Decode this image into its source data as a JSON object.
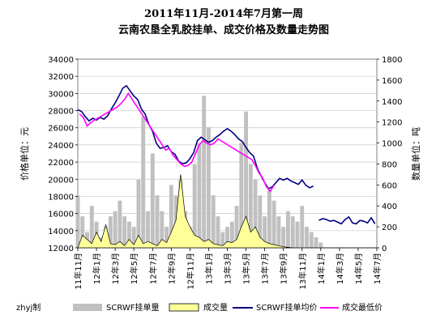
{
  "chart_data": {
    "type": "bar",
    "title": "2011年11月-2014年7月第一周",
    "subtitle": "云南农垦全乳胶挂单、成交价格及数量走势图",
    "ylabel_left": "价格单位：元",
    "ylabel_right": "数量单位：吨",
    "left_ticks": [
      "34000",
      "32000",
      "30000",
      "28000",
      "26000",
      "24000",
      "22000",
      "20000",
      "18000",
      "16000",
      "14000",
      "12000"
    ],
    "right_ticks": [
      "1800",
      "1600",
      "1400",
      "1200",
      "1000",
      "800",
      "600",
      "400",
      "200",
      "0"
    ],
    "x_ticks": [
      "11年11月",
      "12年1月",
      "12年3月",
      "12年5月",
      "12年7月",
      "12年9月",
      "12年11月",
      "13年1月",
      "13年3月",
      "13年5月",
      "13年7月",
      "13年9月",
      "13年11月",
      "14年1月",
      "14年3月",
      "14年5月",
      "14年7月"
    ],
    "ylim_left": [
      12000,
      34000
    ],
    "ylim_right": [
      0,
      1800
    ],
    "grid": true,
    "legend_position": "bottom",
    "author": "zhyj制",
    "colors": {
      "listing_qty": "#c0c0c0",
      "deal_qty": "#ffff99",
      "listing_avg": "#000080",
      "deal_low": "#ff00ff"
    },
    "series": [
      {
        "name": "SCRWF挂单量",
        "kind": "bar",
        "axis": "right",
        "x": [
          0,
          0.5,
          1,
          1.5,
          2,
          2.5,
          3,
          3.5,
          4,
          4.5,
          5,
          5.5,
          6,
          6.5,
          7,
          7.5,
          8,
          8.5,
          9,
          9.5,
          10,
          10.5,
          11,
          11.5,
          12,
          12.5,
          13,
          13.5,
          14,
          14.5,
          15,
          15.5,
          16,
          16.5,
          17,
          17.5,
          18,
          18.5,
          19,
          19.5,
          20,
          20.5,
          21,
          21.5,
          22,
          22.5,
          23,
          23.5,
          24,
          24.5,
          25,
          25.5,
          26,
          26.5,
          27,
          27.5,
          28,
          28.5,
          29,
          29.5,
          30,
          30.5,
          31,
          31.5,
          32
        ],
        "values": [
          500,
          300,
          150,
          400,
          250,
          100,
          200,
          300,
          350,
          450,
          300,
          250,
          200,
          650,
          1250,
          350,
          900,
          500,
          350,
          200,
          600,
          500,
          650,
          350,
          200,
          800,
          1000,
          1450,
          1150,
          500,
          300,
          150,
          200,
          250,
          400,
          1000,
          1300,
          800,
          650,
          500,
          300,
          550,
          450,
          300,
          200,
          350,
          300,
          250,
          400,
          200,
          150,
          100,
          50,
          0,
          0,
          0,
          0,
          0,
          0,
          0,
          0,
          0,
          0,
          0,
          0
        ]
      },
      {
        "name": "成交量",
        "kind": "area",
        "axis": "right",
        "x": [
          0,
          0.5,
          1,
          1.5,
          2,
          2.5,
          3,
          3.5,
          4,
          4.5,
          5,
          5.5,
          6,
          6.5,
          7,
          7.5,
          8,
          8.5,
          9,
          9.5,
          10,
          10.5,
          11,
          11.5,
          12,
          12.5,
          13,
          13.5,
          14,
          14.5,
          15,
          15.5,
          16,
          16.5,
          17,
          17.5,
          18,
          18.5,
          19,
          19.5,
          20,
          20.5,
          21,
          21.5,
          22,
          22.5,
          23,
          23.5,
          24,
          24.5,
          25,
          25.5,
          26,
          26.5,
          27,
          27.5,
          28,
          28.5,
          29,
          29.5,
          30,
          30.5,
          31,
          31.5,
          32
        ],
        "values": [
          0,
          120,
          80,
          40,
          150,
          60,
          220,
          40,
          30,
          60,
          20,
          80,
          30,
          120,
          40,
          60,
          40,
          20,
          80,
          50,
          150,
          260,
          700,
          300,
          200,
          120,
          100,
          60,
          80,
          40,
          30,
          20,
          60,
          50,
          80,
          200,
          300,
          150,
          200,
          100,
          60,
          40,
          30,
          20,
          10,
          5,
          0,
          0,
          0,
          0,
          0,
          0,
          0,
          0,
          0,
          0,
          0,
          0,
          0,
          0,
          0,
          0,
          0,
          0,
          0
        ]
      },
      {
        "name": "SCRWF挂单均价",
        "kind": "line",
        "axis": "left",
        "x": [
          0,
          0.4,
          0.8,
          1.2,
          1.6,
          2,
          2.4,
          2.8,
          3.2,
          3.6,
          4,
          4.4,
          4.8,
          5.2,
          5.6,
          6,
          6.4,
          6.8,
          7.2,
          7.6,
          8,
          8.4,
          8.8,
          9.2,
          9.6,
          10,
          10.4,
          10.8,
          11.2,
          11.6,
          12,
          12.4,
          12.8,
          13.2,
          13.6,
          14,
          14.4,
          14.8,
          15.2,
          15.6,
          16,
          16.4,
          16.8,
          17.2,
          17.6,
          18,
          18.4,
          18.8,
          19.2,
          19.6,
          20,
          20.4,
          20.8,
          21.2,
          21.6,
          22,
          22.4,
          22.8,
          23.2,
          23.6,
          24,
          24.4,
          24.8,
          25.2
        ],
        "values": [
          28100,
          27900,
          27300,
          26800,
          27100,
          26900,
          27200,
          27000,
          27400,
          28200,
          28900,
          29700,
          30600,
          30900,
          30300,
          29700,
          29300,
          28200,
          27600,
          26400,
          25600,
          24200,
          23600,
          23700,
          23900,
          23200,
          22900,
          22100,
          21800,
          21900,
          22400,
          23100,
          24500,
          24900,
          24600,
          24300,
          24500,
          24900,
          25200,
          25600,
          25900,
          25600,
          25200,
          24700,
          24400,
          23700,
          23100,
          22700,
          21300,
          20400,
          19600,
          18900,
          19100,
          19600,
          20100,
          19900,
          20100,
          19800,
          19600,
          19400,
          19900,
          19300,
          19000,
          19200
        ]
      },
      {
        "name": "成交最低价",
        "kind": "line",
        "axis": "left",
        "x": [
          0.2,
          0.6,
          1.0,
          1.4,
          1.8,
          4.2,
          4.6,
          5.0,
          5.4,
          9.4,
          9.8,
          10.2,
          10.6,
          11.0,
          11.4,
          11.8,
          12.2,
          12.6,
          13.0,
          13.4,
          13.8,
          14.2,
          14.6,
          15.0,
          18.6,
          19.0,
          19.4,
          19.8,
          20.2,
          20.6,
          21.0
        ],
        "values": [
          27600,
          27200,
          26200,
          26600,
          26900,
          28400,
          28800,
          29300,
          30000,
          23400,
          23600,
          22800,
          22300,
          21800,
          21500,
          21600,
          22000,
          23000,
          24000,
          24500,
          24200,
          24000,
          24200,
          24700,
          22300,
          21600,
          20700,
          20100,
          19100,
          18600,
          19300
        ]
      },
      {
        "name": "SCRWF挂单均价 2014",
        "kind": "line",
        "axis": "left",
        "x": [
          25.8,
          26.2,
          26.6,
          27.0,
          27.4,
          27.8,
          28.2,
          28.6,
          29.0,
          29.4,
          29.8,
          30.2,
          30.6,
          31.0,
          31.4,
          31.8
        ],
        "values": [
          15200,
          15400,
          15300,
          15100,
          15200,
          15000,
          14800,
          15300,
          15600,
          14900,
          14800,
          15200,
          15100,
          14900,
          15500,
          14800
        ]
      }
    ]
  }
}
